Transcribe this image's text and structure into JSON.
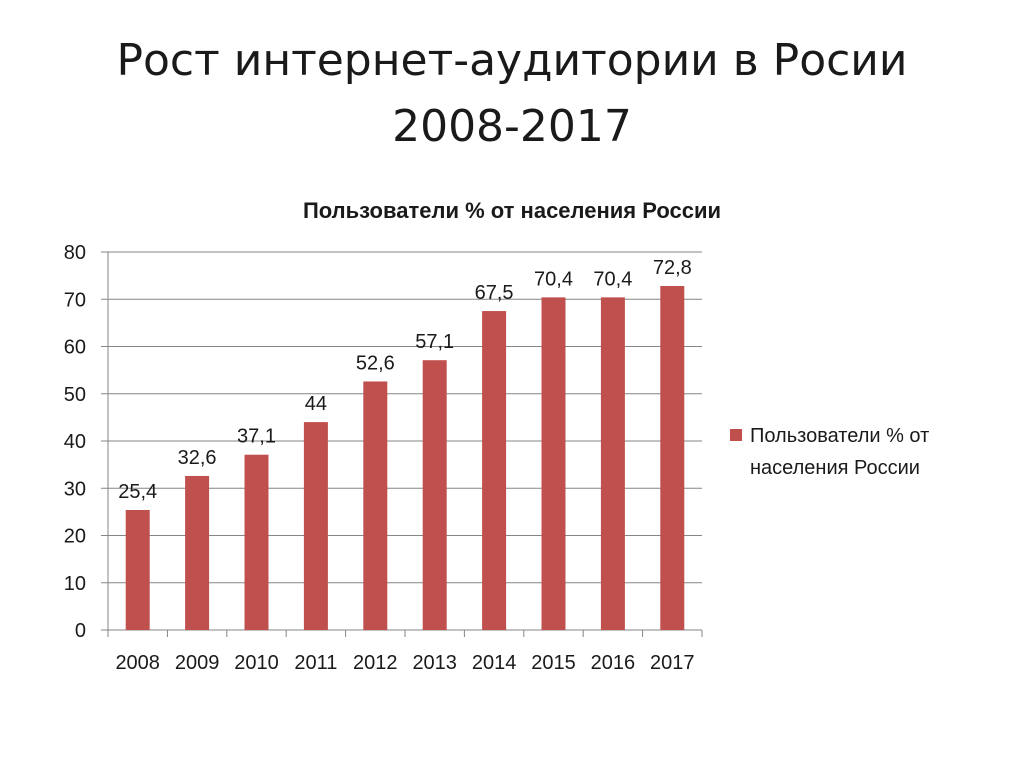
{
  "slide": {
    "title_line1": "Рост интернет-аудитории в Росии",
    "title_line2": "2008-2017"
  },
  "colors": {
    "bar": "#C0504D",
    "axis": "#868686",
    "grid": "#868686",
    "text": "#1a1a1a"
  },
  "chart_data": {
    "type": "bar",
    "title": "Пользователи  % от населения России",
    "categories": [
      "2008",
      "2009",
      "2010",
      "2011",
      "2012",
      "2013",
      "2014",
      "2015",
      "2016",
      "2017"
    ],
    "series": [
      {
        "name": "Пользователи  % от населения России",
        "values": [
          25.4,
          32.6,
          37.1,
          44,
          52.6,
          57.1,
          67.5,
          70.4,
          70.4,
          72.8
        ]
      }
    ],
    "data_labels": [
      "25,4",
      "32,6",
      "37,1",
      "44",
      "52,6",
      "57,1",
      "67,5",
      "70,4",
      "70,4",
      "72,8"
    ],
    "y_ticks": [
      "0",
      "10",
      "20",
      "30",
      "40",
      "50",
      "60",
      "70",
      "80"
    ],
    "ylim": [
      0,
      80
    ],
    "grid": true,
    "legend_position": "right",
    "legend_lines": [
      "Пользователи  % от",
      "населения России"
    ]
  }
}
